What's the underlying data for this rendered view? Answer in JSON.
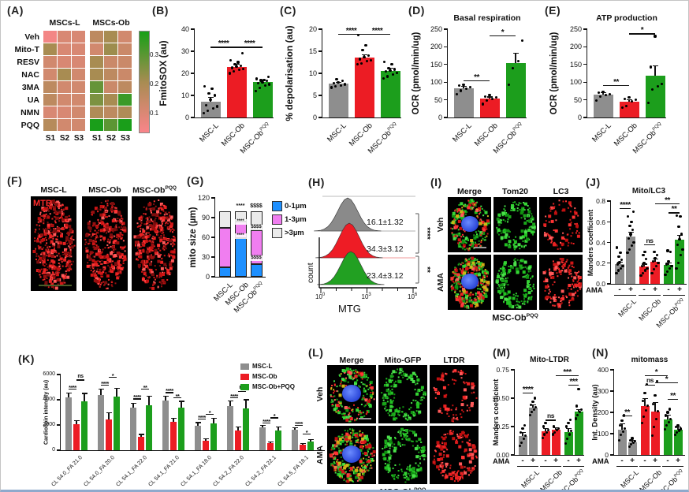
{
  "figure": {
    "background": "#ffffff"
  },
  "colors": {
    "gray": "#8E8E8E",
    "red": "#EC1C24",
    "green": "#1C9E1C",
    "blue": "#1E90FF",
    "pink": "#F07EF0",
    "lightgray": "#EBEBEB"
  },
  "panels": {
    "A": {
      "label": "(A)",
      "col_groups": [
        "MSCs-L",
        "MSCs-Ob"
      ],
      "rows": [
        "Veh",
        "Mito-T",
        "RESV",
        "NAC",
        "3MA",
        "UA",
        "NMN",
        "PQQ"
      ],
      "cols": [
        "S1",
        "S2",
        "S3",
        "S1",
        "S2",
        "S3"
      ],
      "colorbar_ticks": [
        "0.3",
        "0.2",
        "0.1"
      ]
    },
    "B": {
      "label": "(B)"
    },
    "C": {
      "label": "(C)"
    },
    "D": {
      "label": "(D)"
    },
    "E": {
      "label": "(E)"
    },
    "F": {
      "label": "(F)",
      "tag": "MTR",
      "titles": [
        "MSC-L",
        "MSC-Ob",
        "MSC-Ob^PQQ"
      ]
    },
    "G": {
      "label": "(G)"
    },
    "H": {
      "label": "(H)"
    },
    "I": {
      "label": "(I)",
      "cols": [
        "Merge",
        "Tom20",
        "LC3"
      ],
      "rows": [
        "Veh",
        "AMA"
      ],
      "bottom": "MSC-Ob^PQQ"
    },
    "J": {
      "label": "(J)"
    },
    "K": {
      "label": "(K)"
    },
    "L": {
      "label": "(L)",
      "cols": [
        "Merge",
        "Mito-GFP",
        "LTDR"
      ],
      "rows": [
        "Veh",
        "AMA"
      ],
      "bottom": "MSC-Ob^PQQ"
    },
    "M": {
      "label": "(M)"
    },
    "N": {
      "label": "(N)"
    }
  },
  "chart_data": [
    {
      "panel": "A",
      "type": "heatmap",
      "rows": [
        "Veh",
        "Mito-T",
        "RESV",
        "NAC",
        "3MA",
        "UA",
        "NMN",
        "PQQ"
      ],
      "cols": [
        "S1",
        "S2",
        "S3",
        "S1",
        "S2",
        "S3"
      ],
      "col_groups": [
        "MSCs-L",
        "MSCs-Ob"
      ],
      "colorbar_ticks": [
        "0.3",
        "0.2",
        "0.1"
      ],
      "values": [
        [
          0.09,
          0.13,
          0.13,
          0.17,
          0.2,
          0.14
        ],
        [
          0.2,
          0.13,
          0.13,
          0.14,
          0.21,
          0.15
        ],
        [
          0.14,
          0.13,
          0.13,
          0.2,
          0.15,
          0.15
        ],
        [
          0.14,
          0.2,
          0.14,
          0.2,
          0.17,
          0.15
        ],
        [
          0.17,
          0.14,
          0.14,
          0.26,
          0.15,
          0.17
        ],
        [
          0.17,
          0.14,
          0.14,
          0.24,
          0.2,
          0.3
        ],
        [
          0.13,
          0.13,
          0.14,
          0.19,
          0.17,
          0.19
        ],
        [
          0.18,
          0.14,
          0.14,
          0.33,
          0.27,
          0.34
        ]
      ]
    },
    {
      "panel": "B",
      "type": "bar",
      "ylabel": "FmitoSOX (au)",
      "ylim": [
        0,
        40
      ],
      "yticks": [
        0,
        10,
        20,
        30,
        40
      ],
      "ytick_labels": [
        "0",
        "10",
        "20",
        "30",
        "40"
      ],
      "categories": [
        "MSC-L",
        "MSC-Ob",
        "MSC-Ob^PQQ"
      ],
      "values": [
        7,
        23,
        16
      ],
      "errors": [
        2,
        1.2,
        0.9
      ],
      "colors": [
        "gray",
        "red",
        "green"
      ],
      "points": [
        [
          2,
          3,
          4,
          5,
          5.5,
          8,
          10,
          11,
          13,
          14
        ],
        [
          20,
          21,
          21.5,
          22,
          22.5,
          23,
          23.5,
          24,
          25,
          26,
          29
        ],
        [
          12,
          13.5,
          14.5,
          15,
          15.5,
          16,
          16.5,
          16.8,
          17,
          17.5,
          18.5
        ]
      ],
      "sig": [
        {
          "from": 0,
          "to": 1,
          "label": "****",
          "y": 32
        },
        {
          "from": 1,
          "to": 2,
          "label": "****",
          "y": 32
        }
      ]
    },
    {
      "panel": "C",
      "type": "bar",
      "ylabel": "% depolarisation (au)",
      "ylim": [
        0,
        20
      ],
      "yticks": [
        0,
        5,
        10,
        15,
        20
      ],
      "ytick_labels": [
        "0",
        "5",
        "10",
        "15",
        "20"
      ],
      "categories": [
        "MSC-L",
        "MSC-Ob",
        "MSC-Ob^PQQ"
      ],
      "values": [
        7.6,
        13.6,
        10.6
      ],
      "errors": [
        0.4,
        0.6,
        0.5
      ],
      "colors": [
        "gray",
        "red",
        "green"
      ],
      "points": [
        [
          6.8,
          7,
          7.3,
          7.5,
          7.7,
          8,
          8.3,
          8.6
        ],
        [
          12,
          12.3,
          12.7,
          13,
          13.2,
          13.6,
          14,
          15.3,
          16.4,
          18.6
        ],
        [
          8.8,
          9.3,
          9.8,
          10.1,
          10.4,
          10.6,
          10.9,
          11.2,
          12.1,
          12.6
        ]
      ],
      "sig": [
        {
          "from": 0,
          "to": 1,
          "label": "****",
          "y": 19
        },
        {
          "from": 1,
          "to": 2,
          "label": "****",
          "y": 19
        }
      ]
    },
    {
      "panel": "D",
      "type": "bar",
      "title": "Basal respiration",
      "ylabel": "OCR (pmol/min/ug)",
      "ylim": [
        0,
        250
      ],
      "yticks": [
        0,
        50,
        100,
        150,
        200,
        250
      ],
      "ytick_labels": [
        "0",
        "50",
        "100",
        "150",
        "200",
        "250"
      ],
      "categories": [
        "MSC-L",
        "MSC-Ob",
        "MSC-Ob^PQQ"
      ],
      "values": [
        82,
        53,
        153
      ],
      "errors": [
        6,
        5,
        28
      ],
      "colors": [
        "gray",
        "red",
        "green"
      ],
      "points": [
        [
          65,
          76,
          82,
          86,
          90,
          93
        ],
        [
          38,
          48,
          53,
          57,
          60,
          63
        ],
        [
          93,
          139,
          160,
          218
        ]
      ],
      "sig": [
        {
          "from": 0,
          "to": 1,
          "label": "**",
          "y": 105
        },
        {
          "from": 1,
          "to": 2,
          "label": "*",
          "y": 232
        }
      ]
    },
    {
      "panel": "E",
      "type": "bar",
      "title": "ATP production",
      "ylabel": "OCR (pmol/min/ug)",
      "ylim": [
        0,
        250
      ],
      "yticks": [
        0,
        50,
        100,
        150,
        200,
        250
      ],
      "ytick_labels": [
        "0",
        "50",
        "100",
        "150",
        "200",
        "250"
      ],
      "categories": [
        "MSC-L",
        "MSC-Ob",
        "MSC-Ob^PQQ"
      ],
      "values": [
        65,
        45,
        118
      ],
      "errors": [
        5,
        6,
        28
      ],
      "colors": [
        "gray",
        "red",
        "green"
      ],
      "points": [
        [
          48,
          60,
          64,
          66,
          70,
          73
        ],
        [
          28,
          33,
          45,
          50,
          53,
          56
        ],
        [
          42,
          80,
          88,
          95,
          143,
          230
        ]
      ],
      "sig": [
        {
          "from": 0,
          "to": 1,
          "label": "**",
          "y": 92
        },
        {
          "from": 1,
          "to": 2,
          "label": "*",
          "y": 238
        }
      ]
    },
    {
      "panel": "G",
      "type": "stacked-bar",
      "ylabel": "mito size (µm)",
      "ylim": [
        0,
        120
      ],
      "yticks": [
        0,
        30,
        60,
        90,
        120
      ],
      "ytick_labels": [
        "0",
        "30",
        "60",
        "90",
        "120"
      ],
      "categories": [
        "MSC-L",
        "MSC-Ob",
        "MSC-Ob^PQQ"
      ],
      "series": [
        {
          "name": "0-1µm",
          "color": "blue",
          "values": [
            14,
            59,
            19
          ]
        },
        {
          "name": "1-3µm",
          "color": "pink",
          "values": [
            60,
            25,
            52
          ]
        },
        {
          "name": ">3µm",
          "color": "lightgray",
          "values": [
            26,
            16,
            29
          ]
        }
      ],
      "top_annotations": [
        "",
        "****",
        "$$$$"
      ],
      "inner_annotations": [
        [],
        [
          {
            "y": 84,
            "label": "****"
          },
          {
            "y": 62,
            "label": "****"
          }
        ],
        [
          {
            "y": 75,
            "label": "$$$$"
          },
          {
            "y": 28,
            "label": "$$$$"
          }
        ]
      ]
    },
    {
      "panel": "H",
      "type": "flow-histogram",
      "xlabel": "MTG",
      "ylabel": "count",
      "xticks": [
        "10^0",
        "10^3",
        "10^6"
      ],
      "series": [
        {
          "color": "gray",
          "label": "16.1±1.32"
        },
        {
          "color": "red",
          "label": "34.3±3.12"
        },
        {
          "color": "green",
          "label": "23.4±3.12"
        }
      ],
      "sig": [
        {
          "pair": [
            0,
            1
          ],
          "label": "****"
        },
        {
          "pair": [
            1,
            2
          ],
          "label": "**"
        }
      ]
    },
    {
      "panel": "J",
      "type": "bar-paired",
      "title": "Mito/LC3",
      "ylabel": "Manders coefficient",
      "ylim": [
        0,
        0.8
      ],
      "yticks": [
        0,
        0.2,
        0.4,
        0.6,
        0.8
      ],
      "ytick_labels": [
        "0.0",
        "0.2",
        "0.4",
        "0.6",
        "0.8"
      ],
      "ama_signs": [
        "-",
        "+",
        "-",
        "+",
        "-",
        "+"
      ],
      "ama_label": "AMA",
      "group_labels": [
        "MSC-L",
        "MSC-Ob",
        "MSC-Ob^PQQ"
      ],
      "values": [
        0.19,
        0.46,
        0.17,
        0.21,
        0.18,
        0.43
      ],
      "errors": [
        0.02,
        0.04,
        0.02,
        0.03,
        0.02,
        0.04
      ],
      "colors": [
        "gray",
        "gray",
        "red",
        "red",
        "green",
        "green"
      ],
      "points": [
        [
          0.1,
          0.13,
          0.15,
          0.17,
          0.19,
          0.21,
          0.23,
          0.26,
          0.3,
          0.35
        ],
        [
          0.3,
          0.33,
          0.37,
          0.4,
          0.44,
          0.48,
          0.52,
          0.56,
          0.6,
          0.65,
          0.7
        ],
        [
          0.08,
          0.1,
          0.13,
          0.15,
          0.17,
          0.2,
          0.24,
          0.28,
          0.31
        ],
        [
          0.1,
          0.14,
          0.17,
          0.2,
          0.22,
          0.25,
          0.28,
          0.31
        ],
        [
          0.09,
          0.12,
          0.15,
          0.17,
          0.19,
          0.22,
          0.31,
          0.32
        ],
        [
          0.15,
          0.2,
          0.28,
          0.33,
          0.38,
          0.43,
          0.48,
          0.55,
          0.65,
          0.66
        ]
      ],
      "sig": [
        {
          "from": 0,
          "to": 1,
          "label": "****",
          "y": 0.73
        },
        {
          "from": 2,
          "to": 3,
          "label": "ns",
          "y": 0.38
        },
        {
          "from": 3,
          "to": 5,
          "label": "**",
          "y": 0.78
        },
        {
          "from": 4,
          "to": 5,
          "label": "**",
          "y": 0.69
        }
      ]
    },
    {
      "panel": "K",
      "type": "bar-grouped",
      "ylabel": "Cardiolipin intensity (au)",
      "ylim": [
        0,
        6000
      ],
      "yticks": [
        0,
        2000,
        4000,
        6000
      ],
      "ytick_labels": [
        "0",
        "2000",
        "4000",
        "6000"
      ],
      "categories": [
        "CL 54.0_FA 21.0",
        "CL 54.0_FA 20.0",
        "CL 54.1_FA 22.0",
        "CL 54.1_FA 21.0",
        "CL 54.1_FA 18.0",
        "CL 54.2_FA 22.0",
        "CL 54.2_FA 22.1",
        "CL 54.5_FA 18.1"
      ],
      "legend": [
        {
          "label": "MSC-L",
          "color": "gray"
        },
        {
          "label": "MSC-Ob",
          "color": "red"
        },
        {
          "label": "MSC-Ob+PQQ",
          "color": "green"
        }
      ],
      "series": [
        {
          "name": "MSC-L",
          "color": "gray",
          "values": [
            4200,
            4400,
            3350,
            3950,
            1950,
            3500,
            1800,
            1600
          ],
          "errors": [
            350,
            450,
            380,
            320,
            240,
            420,
            180,
            160
          ]
        },
        {
          "name": "MSC-Ob",
          "color": "red",
          "values": [
            2050,
            2450,
            1050,
            2250,
            750,
            1550,
            550,
            450
          ],
          "errors": [
            300,
            500,
            200,
            260,
            160,
            300,
            120,
            100
          ]
        },
        {
          "name": "MSC-Ob+PQQ",
          "color": "green",
          "values": [
            3900,
            4250,
            3550,
            3350,
            2100,
            3300,
            1550,
            700
          ],
          "errors": [
            600,
            650,
            750,
            520,
            420,
            700,
            280,
            150
          ]
        }
      ],
      "sig1": [
        "****",
        "****",
        "****",
        "****",
        "****",
        "****",
        "****",
        "****"
      ],
      "sig2": [
        "ns",
        "*",
        "**",
        "**",
        "*",
        "ns",
        "*",
        "*"
      ],
      "sig1_y": [
        4900,
        5200,
        4100,
        4600,
        2500,
        4200,
        2200,
        2000
      ],
      "sig2_y": [
        5600,
        5800,
        4900,
        4200,
        2900,
        4700,
        2600,
        1300
      ]
    },
    {
      "panel": "M",
      "type": "bar-paired",
      "title": "Mito-LTDR",
      "ylabel": "Manders coefficient",
      "ylim": [
        0,
        0.75
      ],
      "yticks": [
        0,
        0.25,
        0.5,
        0.75
      ],
      "ytick_labels": [
        "0.00",
        "0.25",
        "0.50",
        "0.75"
      ],
      "ama_signs": [
        "-",
        "+",
        "-",
        "+",
        "-",
        "+"
      ],
      "ama_label": "AMA",
      "group_labels": [
        "MSC-L",
        "MSC-Ob",
        "MSC-Ob^PQQ"
      ],
      "values": [
        0.17,
        0.42,
        0.21,
        0.22,
        0.2,
        0.38
      ],
      "errors": [
        0.03,
        0.02,
        0.02,
        0.02,
        0.03,
        0.02
      ],
      "colors": [
        "gray",
        "gray",
        "red",
        "red",
        "green",
        "green"
      ],
      "points": [
        [
          0.08,
          0.11,
          0.14,
          0.17,
          0.2,
          0.23,
          0.26
        ],
        [
          0.35,
          0.38,
          0.4,
          0.42,
          0.44,
          0.47,
          0.5
        ],
        [
          0.15,
          0.18,
          0.2,
          0.22,
          0.25,
          0.28
        ],
        [
          0.18,
          0.2,
          0.22,
          0.23,
          0.25
        ],
        [
          0.1,
          0.14,
          0.18,
          0.21,
          0.25,
          0.28,
          0.31
        ],
        [
          0.32,
          0.35,
          0.38,
          0.4,
          0.43,
          0.58
        ]
      ],
      "sig": [
        {
          "from": 0,
          "to": 1,
          "label": "****",
          "y": 0.55
        },
        {
          "from": 2,
          "to": 3,
          "label": "ns",
          "y": 0.31
        },
        {
          "from": 3,
          "to": 5,
          "label": "***",
          "y": 0.7
        },
        {
          "from": 4,
          "to": 5,
          "label": "***",
          "y": 0.62
        }
      ]
    },
    {
      "panel": "N",
      "type": "bar-paired",
      "title": "mitomass",
      "ylabel": "Int. Density (au)",
      "ylim": [
        0,
        400
      ],
      "yticks": [
        0,
        100,
        200,
        300,
        400
      ],
      "ytick_labels": [
        "0",
        "100",
        "200",
        "300",
        "400"
      ],
      "ama_signs": [
        "-",
        "+",
        "-",
        "+",
        "-",
        "+"
      ],
      "ama_label": "AMA",
      "group_labels": [
        "MSC-L",
        "MSC-Ob",
        "MSC-Ob^PQQ"
      ],
      "values": [
        120,
        60,
        230,
        205,
        168,
        120
      ],
      "errors": [
        25,
        10,
        35,
        40,
        18,
        12
      ],
      "colors": [
        "gray",
        "gray",
        "red",
        "red",
        "green",
        "green"
      ],
      "points": [
        [
          70,
          95,
          110,
          125,
          140,
          160,
          185
        ],
        [
          40,
          50,
          58,
          64,
          70,
          78
        ],
        [
          150,
          180,
          210,
          230,
          255,
          290,
          330
        ],
        [
          90,
          130,
          170,
          205,
          240,
          280,
          345
        ],
        [
          120,
          140,
          155,
          170,
          185,
          200,
          215
        ],
        [
          95,
          105,
          115,
          122,
          130,
          140
        ]
      ],
      "sig": [
        {
          "from": 0,
          "to": 1,
          "label": "**",
          "y": 185
        },
        {
          "from": 2,
          "to": 3,
          "label": "ns",
          "y": 330
        },
        {
          "from": 2,
          "to": 4,
          "label": "*",
          "y": 375
        },
        {
          "from": 3,
          "to": 5,
          "label": "*",
          "y": 340
        },
        {
          "from": 4,
          "to": 5,
          "label": "**",
          "y": 262
        }
      ]
    }
  ]
}
